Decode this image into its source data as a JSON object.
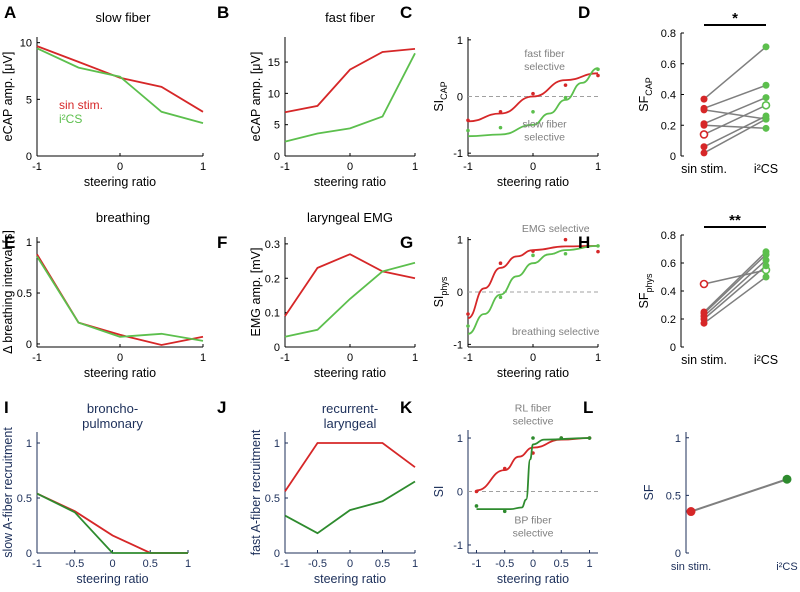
{
  "colors": {
    "red": "#d62728",
    "green": "#5cbf4d",
    "dark_green": "#2e8b2e",
    "gray": "#808080",
    "navy": "#1c2f5a"
  },
  "chart_data": [
    {
      "id": "A",
      "letter": "A",
      "type": "line",
      "title": "slow fiber",
      "xlabel": "steering ratio",
      "ylabel": "eCAP amp. [μV]",
      "xlim": [
        -1,
        1
      ],
      "ylim": [
        0,
        10.5
      ],
      "xticks": [
        -1,
        0,
        1
      ],
      "yticks": [
        0,
        5,
        10
      ],
      "series": [
        {
          "name": "sin stim.",
          "color": "red",
          "x": [
            -1,
            -0.5,
            0,
            0.5,
            1
          ],
          "values": [
            9.7,
            8.3,
            6.9,
            6.1,
            3.9
          ]
        },
        {
          "name": "i²CS",
          "color": "green",
          "x": [
            -1,
            -0.5,
            0,
            0.5,
            1
          ],
          "values": [
            9.5,
            7.8,
            7.0,
            3.9,
            2.9
          ]
        }
      ],
      "legend": [
        {
          "text": "sin stim.",
          "color": "red"
        },
        {
          "text": "i²CS",
          "color": "green"
        }
      ]
    },
    {
      "id": "B",
      "letter": "B",
      "type": "line",
      "title": "fast fiber",
      "xlabel": "steering ratio",
      "ylabel": "eCAP amp. [μV]",
      "xlim": [
        -1,
        1
      ],
      "ylim": [
        0,
        19
      ],
      "xticks": [
        -1,
        0,
        1
      ],
      "yticks": [
        0,
        5,
        10,
        15
      ],
      "series": [
        {
          "name": "sin stim.",
          "color": "red",
          "x": [
            -1,
            -0.5,
            0,
            0.5,
            1
          ],
          "values": [
            7.0,
            8.0,
            13.8,
            16.6,
            17.1
          ]
        },
        {
          "name": "i²CS",
          "color": "green",
          "x": [
            -1,
            -0.5,
            0,
            0.5,
            1
          ],
          "values": [
            2.3,
            3.6,
            4.4,
            6.3,
            16.4
          ]
        }
      ]
    },
    {
      "id": "C",
      "letter": "C",
      "type": "scatter",
      "title": "",
      "xlabel": "steering ratio",
      "ylabel": "SI",
      "ylabel_sub": "CAP",
      "xlim": [
        -1,
        1
      ],
      "ylim": [
        -1.05,
        1.05
      ],
      "xticks": [
        -1,
        0,
        1
      ],
      "yticks": [
        -1,
        0,
        1
      ],
      "hline": 0,
      "series": [
        {
          "name": "sin stim.",
          "color": "red",
          "x": [
            -1,
            -0.5,
            0,
            0.5,
            1
          ],
          "values": [
            -0.42,
            -0.27,
            0.05,
            0.2,
            0.37
          ],
          "fit": [
            [
              -1,
              -0.44
            ],
            [
              -0.5,
              -0.3
            ],
            [
              0,
              0.0
            ],
            [
              0.5,
              0.29
            ],
            [
              1,
              0.41
            ]
          ]
        },
        {
          "name": "i²CS",
          "color": "green",
          "x": [
            -1,
            -0.5,
            0,
            0.5,
            1
          ],
          "values": [
            -0.6,
            -0.55,
            -0.27,
            -0.02,
            0.48
          ],
          "fit": [
            [
              -1,
              -0.7
            ],
            [
              -0.5,
              -0.67
            ],
            [
              0,
              -0.5
            ],
            [
              0.25,
              -0.3
            ],
            [
              0.5,
              -0.06
            ],
            [
              0.75,
              0.24
            ],
            [
              1,
              0.5
            ]
          ]
        }
      ],
      "annotations": [
        {
          "lines": [
            "fast fiber",
            "selective"
          ],
          "at": [
            0.3,
            0.7
          ]
        },
        {
          "lines": [
            "slow fiber",
            "selective"
          ],
          "at": [
            0.3,
            -0.55
          ]
        }
      ]
    },
    {
      "id": "D",
      "letter": "D",
      "type": "paired",
      "title": "",
      "xlabel": "",
      "ylabel": "SF",
      "ylabel_sub": "CAP",
      "categories": [
        "sin stim.",
        "i²CS"
      ],
      "ylim": [
        0,
        0.8
      ],
      "yticks": [
        0,
        0.2,
        0.4,
        0.6,
        0.8
      ],
      "pairs": [
        [
          0.37,
          0.71
        ],
        [
          0.31,
          0.46
        ],
        [
          0.21,
          0.38
        ],
        [
          0.14,
          0.33
        ],
        [
          0.06,
          0.26
        ],
        [
          0.02,
          0.24
        ],
        [
          0.3,
          0.24
        ],
        [
          0.2,
          0.18
        ]
      ],
      "hollow_pair": 3,
      "significance": "*"
    },
    {
      "id": "E",
      "letter": "E",
      "type": "line",
      "title": "breathing",
      "xlabel": "steering ratio",
      "ylabel": "Δ breathing interval [s]",
      "xlim": [
        -1,
        1
      ],
      "ylim": [
        -0.03,
        1.05
      ],
      "xticks": [
        -1,
        0,
        1
      ],
      "yticks": [
        0,
        0.5,
        1
      ],
      "series": [
        {
          "name": "sin stim.",
          "color": "red",
          "x": [
            -1,
            -0.5,
            0,
            0.5,
            1
          ],
          "values": [
            0.88,
            0.21,
            0.09,
            -0.01,
            0.07
          ]
        },
        {
          "name": "i²CS",
          "color": "green",
          "x": [
            -1,
            -0.5,
            0,
            0.5,
            1
          ],
          "values": [
            0.86,
            0.21,
            0.07,
            0.1,
            0.03
          ]
        }
      ]
    },
    {
      "id": "F",
      "letter": "F",
      "type": "line",
      "title": "laryngeal EMG",
      "xlabel": "steering ratio",
      "ylabel": "EMG amp. [mV]",
      "xlim": [
        -1,
        1
      ],
      "ylim": [
        0,
        0.32
      ],
      "xticks": [
        -1,
        0,
        1
      ],
      "yticks": [
        0,
        0.1,
        0.2,
        0.3
      ],
      "series": [
        {
          "name": "sin stim.",
          "color": "red",
          "x": [
            -1,
            -0.5,
            0,
            0.5,
            1
          ],
          "values": [
            0.09,
            0.23,
            0.27,
            0.22,
            0.2
          ]
        },
        {
          "name": "i²CS",
          "color": "green",
          "x": [
            -1,
            -0.5,
            0,
            0.5,
            1
          ],
          "values": [
            0.03,
            0.05,
            0.14,
            0.22,
            0.245
          ]
        }
      ]
    },
    {
      "id": "G",
      "letter": "G",
      "type": "scatter",
      "title": "",
      "xlabel": "steering ratio",
      "ylabel": "SI",
      "ylabel_sub": "phys",
      "xlim": [
        -1,
        1
      ],
      "ylim": [
        -1.05,
        1.05
      ],
      "xticks": [
        -1,
        0,
        1
      ],
      "yticks": [
        -1,
        0,
        1
      ],
      "hline": 0,
      "series": [
        {
          "name": "sin stim.",
          "color": "red",
          "x": [
            -1,
            -0.5,
            0,
            0.5,
            1
          ],
          "values": [
            -0.42,
            0.55,
            0.78,
            1.0,
            0.77
          ],
          "fit": [
            [
              -1,
              -0.5
            ],
            [
              -0.75,
              0.07
            ],
            [
              -0.5,
              0.46
            ],
            [
              -0.25,
              0.68
            ],
            [
              0,
              0.8
            ],
            [
              0.5,
              0.87
            ],
            [
              1,
              0.88
            ]
          ]
        },
        {
          "name": "i²CS",
          "color": "green",
          "x": [
            -1,
            -0.5,
            0,
            0.5,
            1
          ],
          "values": [
            -0.65,
            -0.1,
            0.7,
            0.73,
            0.88
          ],
          "fit": [
            [
              -1,
              -0.8
            ],
            [
              -0.75,
              -0.42
            ],
            [
              -0.5,
              -0.05
            ],
            [
              -0.25,
              0.3
            ],
            [
              0,
              0.55
            ],
            [
              0.25,
              0.72
            ],
            [
              0.5,
              0.8
            ],
            [
              1,
              0.88
            ]
          ]
        }
      ],
      "annotations": [
        {
          "lines": [
            "EMG selective"
          ],
          "at": [
            0.35,
            1.15
          ]
        },
        {
          "lines": [
            "breathing selective"
          ],
          "at": [
            0.35,
            -0.82
          ]
        }
      ]
    },
    {
      "id": "H",
      "letter": "H",
      "type": "paired",
      "title": "",
      "xlabel": "",
      "ylabel": "SF",
      "ylabel_sub": "phys",
      "categories": [
        "sin stim.",
        "i²CS"
      ],
      "ylim": [
        0,
        0.8
      ],
      "yticks": [
        0,
        0.2,
        0.4,
        0.6,
        0.8
      ],
      "pairs": [
        [
          0.45,
          0.55
        ],
        [
          0.25,
          0.68
        ],
        [
          0.24,
          0.66
        ],
        [
          0.22,
          0.62
        ],
        [
          0.2,
          0.58
        ],
        [
          0.17,
          0.5
        ]
      ],
      "hollow_pair": 0,
      "significance": "**"
    },
    {
      "id": "I",
      "letter": "I",
      "type": "line",
      "title": "broncho-\npulmonary",
      "xlabel": "steering ratio",
      "ylabel": "slow A-fiber recruitment",
      "xlim": [
        -1,
        1
      ],
      "ylim": [
        0,
        1.1
      ],
      "xticks": [
        -1,
        -0.5,
        0,
        0.5,
        1
      ],
      "yticks": [
        0,
        0.5,
        1
      ],
      "style": "blue",
      "series": [
        {
          "name": "sin stim.",
          "color": "red",
          "x": [
            -1,
            -0.5,
            0,
            0.5,
            1
          ],
          "values": [
            0.54,
            0.38,
            0.16,
            0.0,
            0.0
          ]
        },
        {
          "name": "i²CS",
          "color": "dark_green",
          "x": [
            -1,
            -0.5,
            0,
            0.5,
            1
          ],
          "values": [
            0.54,
            0.37,
            0.0,
            0.0,
            0.0
          ]
        }
      ]
    },
    {
      "id": "J",
      "letter": "J",
      "type": "line",
      "title": "recurrent-\nlaryngeal",
      "xlabel": "steering ratio",
      "ylabel": "fast A-fiber recruitment",
      "xlim": [
        -1,
        1
      ],
      "ylim": [
        0,
        1.1
      ],
      "xticks": [
        -1,
        -0.5,
        0,
        0.5,
        1
      ],
      "yticks": [
        0,
        0.5,
        1
      ],
      "style": "blue",
      "series": [
        {
          "name": "sin stim.",
          "color": "red",
          "x": [
            -1,
            -0.5,
            0,
            0.5,
            1
          ],
          "values": [
            0.56,
            1.0,
            1.0,
            1.0,
            0.78
          ]
        },
        {
          "name": "i²CS",
          "color": "dark_green",
          "x": [
            -1,
            -0.5,
            0,
            0.5,
            1
          ],
          "values": [
            0.34,
            0.18,
            0.39,
            0.47,
            0.65
          ]
        }
      ]
    },
    {
      "id": "K",
      "letter": "K",
      "type": "scatter",
      "title": "",
      "xlabel": "steering ratio",
      "ylabel": "SI",
      "xlim": [
        -1.15,
        1.15
      ],
      "ylim": [
        -1.15,
        1.15
      ],
      "xticks": [
        -1,
        -0.5,
        0,
        0.5,
        1
      ],
      "yticks": [
        -1,
        0,
        1
      ],
      "hline": 0,
      "style": "blue",
      "series": [
        {
          "name": "sin stim.",
          "color": "red",
          "x": [
            -1,
            -0.5,
            0,
            0.5,
            1
          ],
          "values": [
            0.0,
            0.43,
            0.72,
            1.0,
            1.0
          ],
          "fit": [
            [
              -1,
              0.02
            ],
            [
              -0.5,
              0.4
            ],
            [
              -0.25,
              0.65
            ],
            [
              0,
              0.82
            ],
            [
              0.5,
              0.97
            ],
            [
              1,
              1.0
            ]
          ]
        },
        {
          "name": "i²CS",
          "color": "dark_green",
          "x": [
            -1,
            -0.5,
            0,
            0.5,
            1
          ],
          "values": [
            -0.27,
            -0.37,
            1.0,
            1.0,
            1.0
          ],
          "fit": [
            [
              -1,
              -0.33
            ],
            [
              -0.4,
              -0.33
            ],
            [
              -0.2,
              -0.3
            ],
            [
              -0.12,
              -0.15
            ],
            [
              -0.05,
              0.6
            ],
            [
              0,
              0.88
            ],
            [
              0.2,
              0.97
            ],
            [
              1,
              1.0
            ]
          ]
        }
      ],
      "annotations": [
        {
          "lines": [
            "RL fiber",
            "selective"
          ],
          "at": [
            0.0,
            1.5
          ]
        },
        {
          "lines": [
            "BP fiber",
            "selective"
          ],
          "at": [
            0.0,
            -0.6
          ]
        }
      ]
    },
    {
      "id": "L",
      "letter": "L",
      "type": "paired",
      "title": "",
      "xlabel": "",
      "ylabel": "SF",
      "categories": [
        "sin stim.",
        "i²CS"
      ],
      "ylim": [
        0,
        1.05
      ],
      "yticks": [
        0,
        0.5,
        1
      ],
      "style": "blue",
      "pairs": [
        [
          0.36,
          0.64
        ]
      ],
      "pair_colors": [
        "red",
        "dark_green"
      ],
      "significance": ""
    }
  ]
}
